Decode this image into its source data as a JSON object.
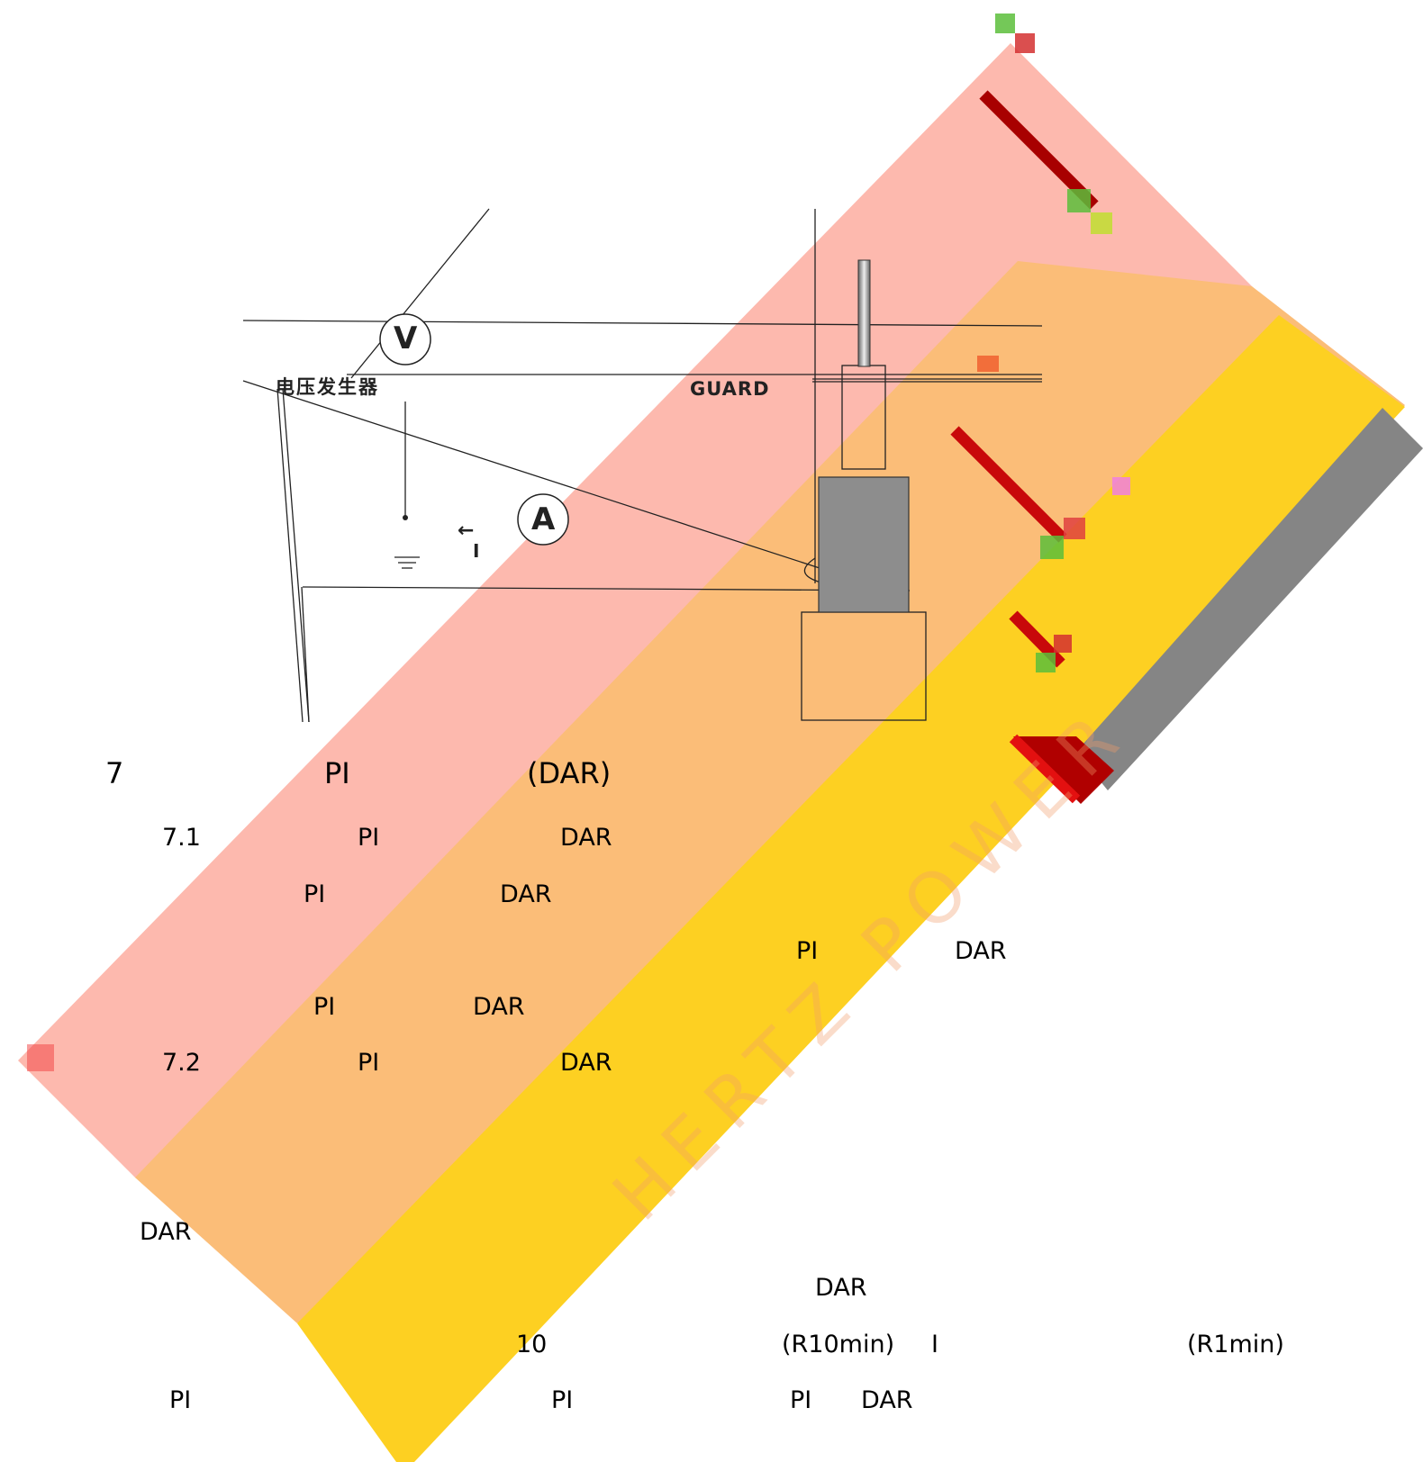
{
  "diagram": {
    "voltmeter_label": "V",
    "ammeter_label": "A",
    "generator_label": "电压发生器",
    "guard_label": "GUARD",
    "current_label": "I",
    "current_arrow": "←"
  },
  "watermark": {
    "text": "HERTZ POWER",
    "colors": {
      "band_pink": "#fdb9ae",
      "band_orange": "#fbbd78",
      "band_yellow": "#fdd022",
      "band_gray": "#858585",
      "accent_red": "#c8080a"
    }
  },
  "section7": {
    "number": "7",
    "pi": "PI",
    "dar": "(DAR)"
  },
  "section71": {
    "number": "7.1",
    "pi": "PI",
    "dar": "DAR",
    "line1_pi": "PI",
    "line1_dar": "DAR",
    "line2_pi": "PI",
    "line2_dar": "DAR",
    "line3_pi": "PI",
    "line3_dar": "DAR"
  },
  "section72": {
    "number": "7.2",
    "pi": "PI",
    "dar": "DAR",
    "line1_dar": "DAR",
    "line2_dar": "DAR",
    "line3_ten": "10",
    "line3_r10": "(R10min)",
    "line3_i": "I",
    "line3_r1": "(R1min)",
    "line4_pi_a": "PI",
    "line4_pi_b": "PI",
    "line4_pi_c": "PI",
    "line4_dar": "DAR"
  }
}
